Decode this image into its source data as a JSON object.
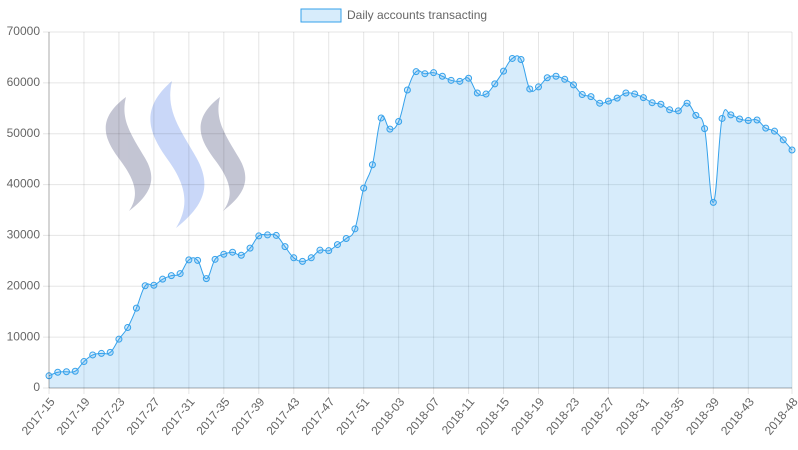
{
  "chart_data": {
    "type": "line",
    "categories": [
      "2017-15",
      null,
      null,
      null,
      "2017-19",
      null,
      null,
      null,
      "2017-23",
      null,
      null,
      null,
      "2017-27",
      null,
      null,
      null,
      "2017-31",
      null,
      null,
      null,
      "2017-35",
      null,
      null,
      null,
      "2017-39",
      null,
      null,
      null,
      "2017-43",
      null,
      null,
      null,
      "2017-47",
      null,
      null,
      null,
      "2017-51",
      null,
      null,
      null,
      "2018-03",
      null,
      null,
      null,
      "2018-07",
      null,
      null,
      null,
      "2018-11",
      null,
      null,
      null,
      "2018-15",
      null,
      null,
      null,
      "2018-19",
      null,
      null,
      null,
      "2018-23",
      null,
      null,
      null,
      "2018-27",
      null,
      null,
      null,
      "2018-31",
      null,
      null,
      null,
      "2018-35",
      null,
      null,
      null,
      "2018-39",
      null,
      null,
      null,
      "2018-43",
      null,
      null,
      null,
      null,
      "2018-48"
    ],
    "series": [
      {
        "name": "Daily accounts transacting",
        "color": "#36a2eb",
        "values": [
          2400,
          3100,
          3200,
          3300,
          5200,
          6500,
          6800,
          7000,
          9600,
          11900,
          15700,
          20100,
          20200,
          21400,
          22100,
          22500,
          25200,
          25100,
          21500,
          25300,
          26300,
          26700,
          26100,
          27500,
          29900,
          30100,
          30000,
          27800,
          25600,
          24900,
          25600,
          27100,
          27000,
          28200,
          29400,
          31300,
          39300,
          43900,
          53100,
          50900,
          52400,
          58600,
          62200,
          61800,
          62000,
          61300,
          60500,
          60300,
          60900,
          58000,
          57800,
          59800,
          62300,
          64800,
          64600,
          58800,
          59200,
          61000,
          61300,
          60700,
          59600,
          57700,
          57300,
          56000,
          56400,
          57000,
          58000,
          57800,
          57100,
          56100,
          55800,
          54700,
          54500,
          56000,
          53600,
          51000,
          36500,
          53000,
          53700,
          52900,
          52600,
          52700,
          51100,
          50500,
          48800,
          46800
        ]
      }
    ],
    "ylim": [
      0,
      70000
    ],
    "yticks": [
      0,
      10000,
      20000,
      30000,
      40000,
      50000,
      60000,
      70000
    ],
    "grid": true,
    "legend": "top"
  }
}
